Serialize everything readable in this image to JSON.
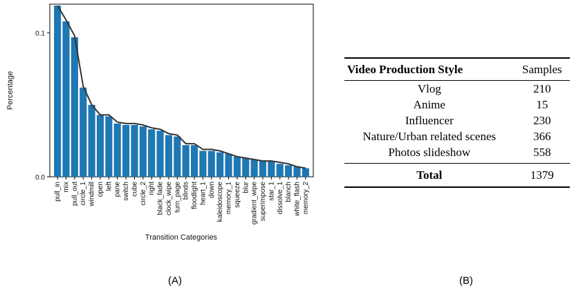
{
  "chart_data": {
    "type": "bar",
    "xlabel": "Transition Categories",
    "ylabel": "Percentage",
    "ylim": [
      0,
      0.12
    ],
    "yticks": [
      {
        "value": 0.0,
        "label": "0.0"
      },
      {
        "value": 0.1,
        "label": "0.1"
      }
    ],
    "categories": [
      "pull_in",
      "mix",
      "pull_out",
      "circle_1",
      "windmill",
      "open",
      "left",
      "pane",
      "switch",
      "cube",
      "circle_2",
      "right",
      "black_fade",
      "clock_wipe",
      "turn_page",
      "blinds",
      "floodlight",
      "heart_1",
      "down",
      "kaleidoscope",
      "memory_1",
      "squeeze",
      "blur",
      "gradient_wipe",
      "superimpose",
      "star_1",
      "dissolve_1",
      "blanch",
      "white_flash",
      "memory_2"
    ],
    "series": [
      {
        "name": "percentage",
        "style": "bars",
        "color": "#1f77b4",
        "values": [
          0.119,
          0.108,
          0.097,
          0.062,
          0.05,
          0.043,
          0.042,
          0.037,
          0.036,
          0.036,
          0.035,
          0.033,
          0.032,
          0.029,
          0.028,
          0.022,
          0.022,
          0.018,
          0.018,
          0.017,
          0.016,
          0.014,
          0.013,
          0.012,
          0.011,
          0.011,
          0.009,
          0.008,
          0.007,
          0.006
        ]
      },
      {
        "name": "trend",
        "style": "line",
        "color": "#333333",
        "values": [
          0.119,
          0.109,
          0.098,
          0.063,
          0.05,
          0.043,
          0.043,
          0.038,
          0.037,
          0.037,
          0.036,
          0.034,
          0.033,
          0.03,
          0.029,
          0.023,
          0.023,
          0.019,
          0.019,
          0.018,
          0.016,
          0.014,
          0.013,
          0.012,
          0.011,
          0.011,
          0.01,
          0.009,
          0.007,
          0.006
        ]
      }
    ]
  },
  "panel_labels": {
    "a": "(A)",
    "b": "(B)"
  },
  "table": {
    "headers": {
      "style": "Video Production Style",
      "samples": "Samples"
    },
    "rows": [
      {
        "style": "Vlog",
        "samples": "210"
      },
      {
        "style": "Anime",
        "samples": "15"
      },
      {
        "style": "Influencer",
        "samples": "230"
      },
      {
        "style": "Nature/Urban related scenes",
        "samples": "366"
      },
      {
        "style": "Photos slideshow",
        "samples": "558"
      }
    ],
    "total": {
      "label": "Total",
      "samples": "1379"
    }
  }
}
